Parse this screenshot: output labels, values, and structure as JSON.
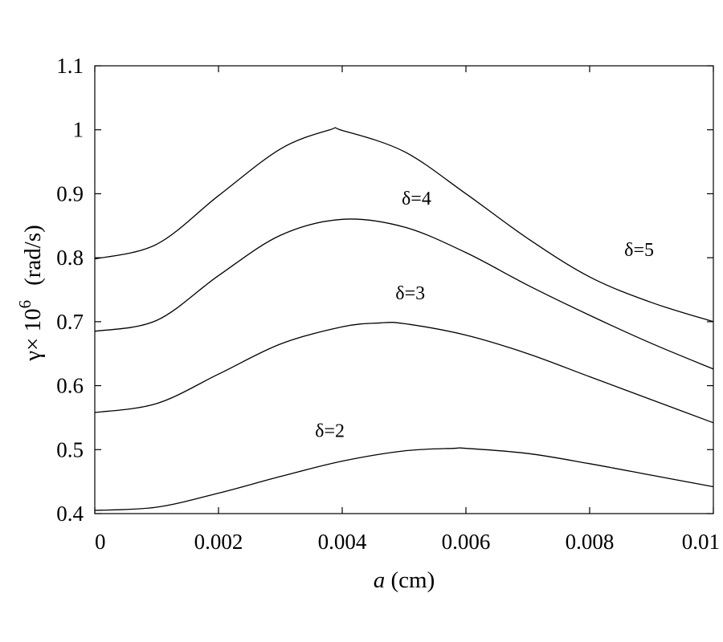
{
  "chart_data": {
    "type": "line",
    "xlabel": {
      "italic": "a",
      "rest": " (cm)"
    },
    "ylabel": {
      "prefix": "γ× 10",
      "exponent": "6",
      "suffix": "(rad/s)"
    },
    "xlim": [
      0,
      0.01
    ],
    "ylim": [
      0.4,
      1.1
    ],
    "xticks": [
      0,
      0.002,
      0.004,
      0.006,
      0.008,
      0.01
    ],
    "xtick_labels": [
      "0",
      "0.002",
      "0.004",
      "0.006",
      "0.008",
      "0.01"
    ],
    "yticks": [
      0.4,
      0.5,
      0.6,
      0.7,
      0.8,
      0.9,
      1.0,
      1.1
    ],
    "ytick_labels": [
      "0.4",
      "0.5",
      "0.6",
      "0.7",
      "0.8",
      "0.9",
      "1",
      "1.1"
    ],
    "grid": false,
    "series": [
      {
        "name": "δ=2",
        "x": [
          0,
          0.001,
          0.002,
          0.003,
          0.004,
          0.005,
          0.0058,
          0.006,
          0.007,
          0.008,
          0.009,
          0.01
        ],
        "y": [
          0.405,
          0.41,
          0.432,
          0.458,
          0.482,
          0.498,
          0.502,
          0.502,
          0.494,
          0.478,
          0.46,
          0.442
        ]
      },
      {
        "name": "δ=3",
        "x": [
          0,
          0.001,
          0.002,
          0.003,
          0.004,
          0.0046,
          0.005,
          0.006,
          0.007,
          0.008,
          0.009,
          0.01
        ],
        "y": [
          0.558,
          0.572,
          0.618,
          0.665,
          0.692,
          0.698,
          0.697,
          0.679,
          0.65,
          0.614,
          0.578,
          0.542
        ]
      },
      {
        "name": "δ=4",
        "x": [
          0,
          0.001,
          0.002,
          0.003,
          0.004,
          0.005,
          0.006,
          0.007,
          0.008,
          0.009,
          0.01
        ],
        "y": [
          0.685,
          0.702,
          0.772,
          0.835,
          0.86,
          0.848,
          0.808,
          0.757,
          0.71,
          0.666,
          0.626
        ]
      },
      {
        "name": "δ=5",
        "x": [
          0,
          0.001,
          0.002,
          0.003,
          0.0038,
          0.004,
          0.005,
          0.006,
          0.007,
          0.008,
          0.009,
          0.01
        ],
        "y": [
          0.798,
          0.821,
          0.897,
          0.97,
          1.0,
          0.999,
          0.966,
          0.9,
          0.83,
          0.77,
          0.73,
          0.7
        ]
      }
    ],
    "annotations": [
      {
        "text": "δ=2",
        "series": "δ=2",
        "x": 0.0038,
        "y": 0.52
      },
      {
        "text": "δ=3",
        "series": "δ=3",
        "x": 0.0051,
        "y": 0.735
      },
      {
        "text": "δ=4",
        "series": "δ=4",
        "x": 0.0052,
        "y": 0.883
      },
      {
        "text": "δ=5",
        "series": "δ=5",
        "x": 0.0088,
        "y": 0.803
      }
    ]
  }
}
